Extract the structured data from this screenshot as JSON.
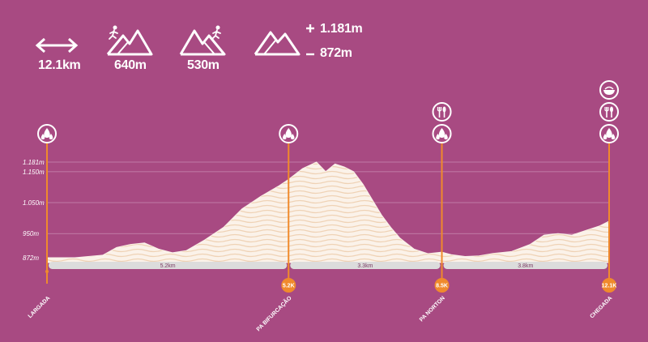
{
  "stats": {
    "distance": "12.1km",
    "ascent": "640m",
    "descent": "530m",
    "max_alt": "1.181m",
    "min_alt": "872m"
  },
  "icons": {
    "distance": "double-arrow-icon",
    "ascent": "runner-uphill-icon",
    "descent": "runner-downhill-icon",
    "altitude": "mountain-range-icon",
    "water": "water-drops-icon",
    "food": "cutlery-icon",
    "meal": "bowl-icon"
  },
  "colors": {
    "background": "#a84a82",
    "profile_fill": "#fbf2e9",
    "marker": "#f08a2c",
    "gridline": "#c98bb1",
    "segment_bar": "#dcdcdc"
  },
  "chart_data": {
    "type": "area",
    "xlabel": "",
    "ylabel": "",
    "xlim": [
      0,
      12.1
    ],
    "ylim": [
      872,
      1181
    ],
    "y_ticks": [
      872,
      950,
      1050,
      1150,
      1181
    ],
    "y_tick_labels": [
      "872m",
      "950m",
      "1.050m",
      "1.150m",
      "1.181m"
    ],
    "grid": true,
    "x": [
      0,
      0.6,
      1.2,
      1.5,
      1.8,
      2.1,
      2.4,
      2.7,
      3.0,
      3.4,
      3.8,
      4.2,
      4.6,
      5.0,
      5.2,
      5.5,
      5.8,
      6.0,
      6.2,
      6.4,
      6.6,
      6.8,
      7.0,
      7.2,
      7.4,
      7.6,
      7.9,
      8.2,
      8.5,
      8.7,
      9.0,
      9.3,
      9.6,
      10.0,
      10.4,
      10.7,
      11.0,
      11.3,
      11.6,
      11.9,
      12.1
    ],
    "values": [
      872,
      872,
      880,
      905,
      915,
      920,
      900,
      888,
      895,
      930,
      970,
      1030,
      1070,
      1105,
      1125,
      1160,
      1181,
      1150,
      1175,
      1165,
      1150,
      1110,
      1060,
      1010,
      970,
      935,
      900,
      885,
      890,
      882,
      876,
      878,
      886,
      892,
      915,
      945,
      950,
      945,
      960,
      975,
      990
    ],
    "segments": [
      {
        "label": "5.2km",
        "from": 0,
        "to": 5.2
      },
      {
        "label": "3.3km",
        "from": 5.2,
        "to": 8.5
      },
      {
        "label": "3.8km",
        "from": 8.5,
        "to": 12.1
      }
    ],
    "stops": [
      {
        "km": 0,
        "name": "LARGADA",
        "km_label": "",
        "services": [
          "water"
        ]
      },
      {
        "km": 5.2,
        "name": "PA BIFURCAÇÃO",
        "km_label": "5.2K",
        "services": [
          "water"
        ]
      },
      {
        "km": 8.5,
        "name": "PA NORTON",
        "km_label": "8.5K",
        "services": [
          "water",
          "food"
        ]
      },
      {
        "km": 12.1,
        "name": "CHEGADA",
        "km_label": "12.1K",
        "services": [
          "water",
          "food",
          "meal"
        ]
      }
    ]
  }
}
